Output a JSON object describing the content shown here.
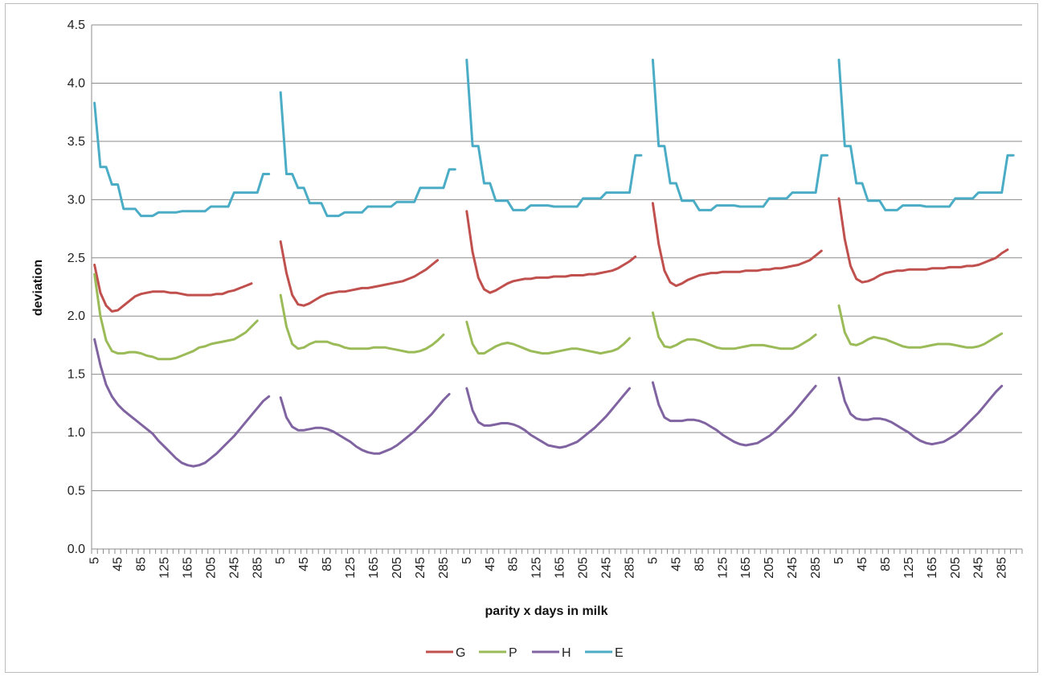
{
  "chart_data": {
    "type": "line",
    "title": "",
    "xlabel": "parity x days in milk",
    "ylabel": "deviation",
    "ylim": [
      0,
      4.5
    ],
    "yticks": [
      "0.0",
      "0.5",
      "1.0",
      "1.5",
      "2.0",
      "2.5",
      "3.0",
      "3.5",
      "4.0",
      "4.5"
    ],
    "x_tick_labels": [
      "5",
      "45",
      "85",
      "125",
      "165",
      "205",
      "245",
      "285"
    ],
    "segments": 5,
    "days_per_segment": [
      5,
      15,
      25,
      35,
      45,
      55,
      65,
      75,
      85,
      95,
      105,
      115,
      125,
      135,
      145,
      155,
      165,
      175,
      185,
      195,
      205,
      215,
      225,
      235,
      245,
      255,
      265,
      275,
      285,
      295,
      305
    ],
    "grid": true,
    "legend_position": "bottom",
    "series": [
      {
        "name": "G",
        "color": "#c0504d",
        "segments": [
          [
            2.44,
            2.2,
            2.09,
            2.04,
            2.05,
            2.09,
            2.13,
            2.17,
            2.19,
            2.2,
            2.21,
            2.21,
            2.21,
            2.2,
            2.2,
            2.19,
            2.18,
            2.18,
            2.18,
            2.18,
            2.18,
            2.19,
            2.19,
            2.21,
            2.22,
            2.24,
            2.26,
            2.28
          ],
          [
            2.64,
            2.37,
            2.18,
            2.1,
            2.09,
            2.11,
            2.14,
            2.17,
            2.19,
            2.2,
            2.21,
            2.21,
            2.22,
            2.23,
            2.24,
            2.24,
            2.25,
            2.26,
            2.27,
            2.28,
            2.29,
            2.3,
            2.32,
            2.34,
            2.37,
            2.4,
            2.44,
            2.48
          ],
          [
            2.9,
            2.55,
            2.33,
            2.23,
            2.2,
            2.22,
            2.25,
            2.28,
            2.3,
            2.31,
            2.32,
            2.32,
            2.33,
            2.33,
            2.33,
            2.34,
            2.34,
            2.34,
            2.35,
            2.35,
            2.35,
            2.36,
            2.36,
            2.37,
            2.38,
            2.39,
            2.41,
            2.44,
            2.47,
            2.51
          ],
          [
            2.97,
            2.62,
            2.39,
            2.29,
            2.26,
            2.28,
            2.31,
            2.33,
            2.35,
            2.36,
            2.37,
            2.37,
            2.38,
            2.38,
            2.38,
            2.38,
            2.39,
            2.39,
            2.39,
            2.4,
            2.4,
            2.41,
            2.41,
            2.42,
            2.43,
            2.44,
            2.46,
            2.48,
            2.52,
            2.56
          ],
          [
            3.01,
            2.66,
            2.43,
            2.32,
            2.29,
            2.3,
            2.32,
            2.35,
            2.37,
            2.38,
            2.39,
            2.39,
            2.4,
            2.4,
            2.4,
            2.4,
            2.41,
            2.41,
            2.41,
            2.42,
            2.42,
            2.42,
            2.43,
            2.43,
            2.44,
            2.46,
            2.48,
            2.5,
            2.54,
            2.57
          ]
        ]
      },
      {
        "name": "P",
        "color": "#9bbb59",
        "segments": [
          [
            2.36,
            2.0,
            1.79,
            1.7,
            1.68,
            1.68,
            1.69,
            1.69,
            1.68,
            1.66,
            1.65,
            1.63,
            1.63,
            1.63,
            1.64,
            1.66,
            1.68,
            1.7,
            1.73,
            1.74,
            1.76,
            1.77,
            1.78,
            1.79,
            1.8,
            1.83,
            1.86,
            1.91,
            1.96
          ],
          [
            2.18,
            1.91,
            1.76,
            1.72,
            1.73,
            1.76,
            1.78,
            1.78,
            1.78,
            1.76,
            1.75,
            1.73,
            1.72,
            1.72,
            1.72,
            1.72,
            1.73,
            1.73,
            1.73,
            1.72,
            1.71,
            1.7,
            1.69,
            1.69,
            1.7,
            1.72,
            1.75,
            1.79,
            1.84
          ],
          [
            1.95,
            1.76,
            1.68,
            1.68,
            1.71,
            1.74,
            1.76,
            1.77,
            1.76,
            1.74,
            1.72,
            1.7,
            1.69,
            1.68,
            1.68,
            1.69,
            1.7,
            1.71,
            1.72,
            1.72,
            1.71,
            1.7,
            1.69,
            1.68,
            1.69,
            1.7,
            1.72,
            1.76,
            1.81
          ],
          [
            2.03,
            1.82,
            1.74,
            1.73,
            1.75,
            1.78,
            1.8,
            1.8,
            1.79,
            1.77,
            1.75,
            1.73,
            1.72,
            1.72,
            1.72,
            1.73,
            1.74,
            1.75,
            1.75,
            1.75,
            1.74,
            1.73,
            1.72,
            1.72,
            1.72,
            1.74,
            1.77,
            1.8,
            1.84
          ],
          [
            2.09,
            1.86,
            1.76,
            1.75,
            1.77,
            1.8,
            1.82,
            1.81,
            1.8,
            1.78,
            1.76,
            1.74,
            1.73,
            1.73,
            1.73,
            1.74,
            1.75,
            1.76,
            1.76,
            1.76,
            1.75,
            1.74,
            1.73,
            1.73,
            1.74,
            1.76,
            1.79,
            1.82,
            1.85
          ]
        ]
      },
      {
        "name": "H",
        "color": "#8064a2",
        "segments": [
          [
            1.8,
            1.58,
            1.41,
            1.31,
            1.24,
            1.19,
            1.15,
            1.11,
            1.07,
            1.03,
            0.99,
            0.93,
            0.88,
            0.83,
            0.78,
            0.74,
            0.72,
            0.71,
            0.72,
            0.74,
            0.78,
            0.82,
            0.87,
            0.92,
            0.97,
            1.03,
            1.09,
            1.15,
            1.21,
            1.27,
            1.31
          ],
          [
            1.3,
            1.13,
            1.05,
            1.02,
            1.02,
            1.03,
            1.04,
            1.04,
            1.03,
            1.01,
            0.98,
            0.95,
            0.92,
            0.88,
            0.85,
            0.83,
            0.82,
            0.82,
            0.84,
            0.86,
            0.89,
            0.93,
            0.97,
            1.01,
            1.06,
            1.11,
            1.16,
            1.22,
            1.28,
            1.33
          ],
          [
            1.38,
            1.19,
            1.09,
            1.06,
            1.06,
            1.07,
            1.08,
            1.08,
            1.07,
            1.05,
            1.02,
            0.98,
            0.95,
            0.92,
            0.89,
            0.88,
            0.87,
            0.88,
            0.9,
            0.92,
            0.96,
            1.0,
            1.04,
            1.09,
            1.14,
            1.2,
            1.26,
            1.32,
            1.38
          ],
          [
            1.43,
            1.24,
            1.13,
            1.1,
            1.1,
            1.1,
            1.11,
            1.11,
            1.1,
            1.08,
            1.05,
            1.02,
            0.98,
            0.95,
            0.92,
            0.9,
            0.89,
            0.9,
            0.91,
            0.94,
            0.97,
            1.01,
            1.06,
            1.11,
            1.16,
            1.22,
            1.28,
            1.34,
            1.4
          ],
          [
            1.47,
            1.27,
            1.16,
            1.12,
            1.11,
            1.11,
            1.12,
            1.12,
            1.11,
            1.09,
            1.06,
            1.03,
            1.0,
            0.96,
            0.93,
            0.91,
            0.9,
            0.91,
            0.92,
            0.95,
            0.98,
            1.02,
            1.07,
            1.12,
            1.17,
            1.23,
            1.29,
            1.35,
            1.4
          ]
        ]
      },
      {
        "name": "E",
        "color": "#4bacc6",
        "segments": [
          [
            3.83,
            3.28,
            3.28,
            3.13,
            3.13,
            2.92,
            2.92,
            2.92,
            2.86,
            2.86,
            2.86,
            2.89,
            2.89,
            2.89,
            2.89,
            2.9,
            2.9,
            2.9,
            2.9,
            2.9,
            2.94,
            2.94,
            2.94,
            2.94,
            3.06,
            3.06,
            3.06,
            3.06,
            3.06,
            3.22,
            3.22
          ],
          [
            3.92,
            3.22,
            3.22,
            3.1,
            3.1,
            2.97,
            2.97,
            2.97,
            2.86,
            2.86,
            2.86,
            2.89,
            2.89,
            2.89,
            2.89,
            2.94,
            2.94,
            2.94,
            2.94,
            2.94,
            2.98,
            2.98,
            2.98,
            2.98,
            3.1,
            3.1,
            3.1,
            3.1,
            3.1,
            3.26,
            3.26
          ],
          [
            4.2,
            3.46,
            3.46,
            3.14,
            3.14,
            2.99,
            2.99,
            2.99,
            2.91,
            2.91,
            2.91,
            2.95,
            2.95,
            2.95,
            2.95,
            2.94,
            2.94,
            2.94,
            2.94,
            2.94,
            3.01,
            3.01,
            3.01,
            3.01,
            3.06,
            3.06,
            3.06,
            3.06,
            3.06,
            3.38,
            3.38
          ],
          [
            4.2,
            3.46,
            3.46,
            3.14,
            3.14,
            2.99,
            2.99,
            2.99,
            2.91,
            2.91,
            2.91,
            2.95,
            2.95,
            2.95,
            2.95,
            2.94,
            2.94,
            2.94,
            2.94,
            2.94,
            3.01,
            3.01,
            3.01,
            3.01,
            3.06,
            3.06,
            3.06,
            3.06,
            3.06,
            3.38,
            3.38
          ],
          [
            4.2,
            3.46,
            3.46,
            3.14,
            3.14,
            2.99,
            2.99,
            2.99,
            2.91,
            2.91,
            2.91,
            2.95,
            2.95,
            2.95,
            2.95,
            2.94,
            2.94,
            2.94,
            2.94,
            2.94,
            3.01,
            3.01,
            3.01,
            3.01,
            3.06,
            3.06,
            3.06,
            3.06,
            3.06,
            3.38,
            3.38
          ]
        ]
      }
    ]
  }
}
